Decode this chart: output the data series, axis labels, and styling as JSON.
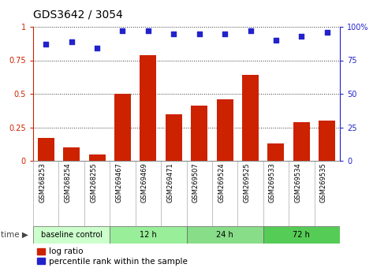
{
  "title": "GDS3642 / 3054",
  "samples": [
    "GSM268253",
    "GSM268254",
    "GSM268255",
    "GSM269467",
    "GSM269469",
    "GSM269471",
    "GSM269507",
    "GSM269524",
    "GSM269525",
    "GSM269533",
    "GSM269534",
    "GSM269535"
  ],
  "log_ratio": [
    0.17,
    0.1,
    0.05,
    0.5,
    0.79,
    0.35,
    0.41,
    0.46,
    0.64,
    0.13,
    0.29,
    0.3
  ],
  "percentile_rank": [
    87,
    89,
    84,
    97,
    97,
    95,
    95,
    95,
    97,
    90,
    93,
    96
  ],
  "bar_color": "#cc2200",
  "dot_color": "#2222cc",
  "ylim_left": [
    0,
    1
  ],
  "ylim_right": [
    0,
    100
  ],
  "yticks_left": [
    0,
    0.25,
    0.5,
    0.75,
    1.0
  ],
  "ytick_labels_left": [
    "0",
    "0.25",
    "0.5",
    "0.75",
    "1"
  ],
  "yticks_right": [
    0,
    25,
    50,
    75,
    100
  ],
  "ytick_labels_right": [
    "0",
    "25",
    "50",
    "75",
    "100%"
  ],
  "groups": [
    {
      "label": "baseline control",
      "start": 0,
      "end": 3,
      "color": "#ccffcc"
    },
    {
      "label": "12 h",
      "start": 3,
      "end": 6,
      "color": "#99ee99"
    },
    {
      "label": "24 h",
      "start": 6,
      "end": 9,
      "color": "#88dd88"
    },
    {
      "label": "72 h",
      "start": 9,
      "end": 12,
      "color": "#55cc55"
    }
  ],
  "bg_color": "#ffffff",
  "tick_area_color": "#cccccc",
  "legend_log_ratio": "log ratio",
  "legend_percentile": "percentile rank within the sample",
  "time_label": "time"
}
